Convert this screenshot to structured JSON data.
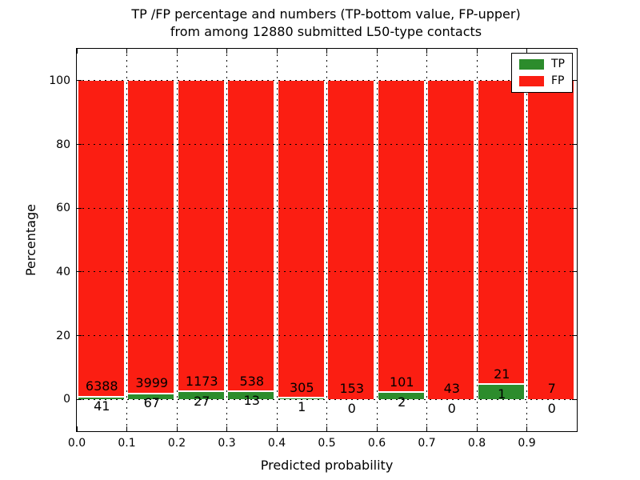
{
  "title": {
    "line1": "TP /FP percentage and numbers (TP-bottom value, FP-upper)",
    "line2": "from among 12880 submitted L50-type contacts"
  },
  "axes": {
    "xlabel": "Predicted probability",
    "ylabel": "Percentage"
  },
  "legend": {
    "position": "upper right",
    "entries": [
      {
        "label": "TP",
        "color": "#2c8c2c"
      },
      {
        "label": "FP",
        "color": "#fb1e12"
      }
    ]
  },
  "chart_data": {
    "type": "bar",
    "stacked": true,
    "title": "TP /FP percentage and numbers (TP-bottom value, FP-upper) from among 12880 submitted L50-type contacts",
    "xlabel": "Predicted probability",
    "ylabel": "Percentage",
    "total_submitted_contacts": 12880,
    "bins": [
      "0.0-0.1",
      "0.1-0.2",
      "0.2-0.3",
      "0.3-0.4",
      "0.4-0.5",
      "0.5-0.6",
      "0.6-0.7",
      "0.7-0.8",
      "0.8-0.9",
      "0.9-1.0"
    ],
    "series": [
      {
        "name": "TP",
        "color": "#2c8c2c",
        "counts": [
          41,
          67,
          27,
          13,
          1,
          0,
          2,
          0,
          1,
          0
        ],
        "percent": [
          0.64,
          1.65,
          2.25,
          2.36,
          0.33,
          0.0,
          1.94,
          0.0,
          4.55,
          0.0
        ]
      },
      {
        "name": "FP",
        "color": "#fb1e12",
        "counts": [
          6388,
          3999,
          1173,
          538,
          305,
          153,
          101,
          43,
          21,
          7
        ],
        "percent": [
          99.36,
          98.35,
          97.75,
          97.64,
          99.67,
          100.0,
          98.06,
          100.0,
          95.45,
          100.0
        ]
      }
    ],
    "x_tick_labels": [
      "0.0",
      "0.1",
      "0.2",
      "0.3",
      "0.4",
      "0.5",
      "0.6",
      "0.7",
      "0.8",
      "0.9"
    ],
    "y_tick_values": [
      0,
      20,
      40,
      60,
      80,
      100
    ],
    "xlim": [
      0.0,
      1.0
    ],
    "ylim": [
      -10,
      110
    ],
    "grid": "dotted black, drawn above bars",
    "legend_position": "upper right",
    "bar_alignment": "left-aligned on bin start, white edges, small gaps at bin boundaries",
    "labels_note": "FP count printed above each green segment inside red area; TP count printed below"
  }
}
